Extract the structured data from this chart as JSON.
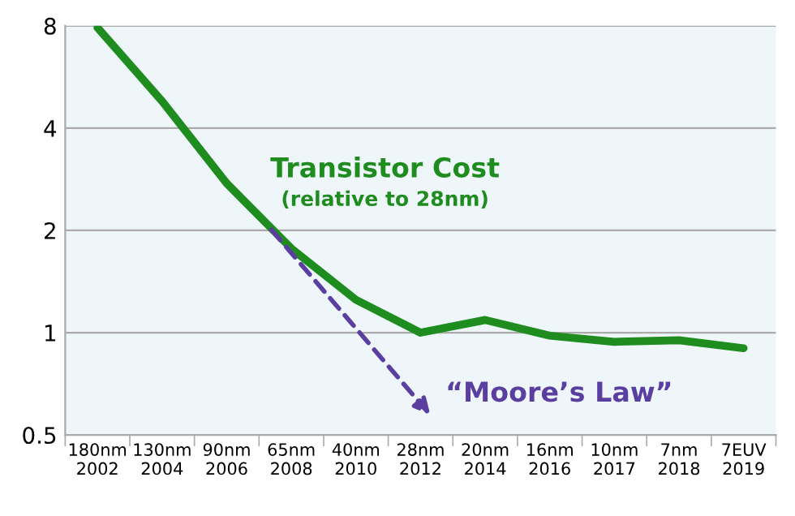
{
  "chart_data": {
    "type": "line",
    "categories": [
      "180nm\n2002",
      "130nm\n2004",
      "90nm\n2006",
      "65nm\n2008",
      "40nm\n2010",
      "28nm\n2012",
      "20nm\n2014",
      "16nm\n2016",
      "10nm\n2017",
      "7nm\n2018",
      "7EUV\n2019"
    ],
    "series": [
      {
        "name": "Transistor Cost",
        "color": "#1e8c1e",
        "values": [
          7.9,
          4.8,
          2.75,
          1.77,
          1.25,
          1.0,
          1.09,
          0.98,
          0.94,
          0.95,
          0.9
        ]
      }
    ],
    "annotations": [
      "(relative to 28nm)",
      "“Moore’s Law”"
    ],
    "log": "y",
    "ylim": [
      0.5,
      8
    ],
    "yticks": [
      0.5,
      1,
      2,
      4,
      8
    ],
    "grid": "y",
    "legend": false
  }
}
